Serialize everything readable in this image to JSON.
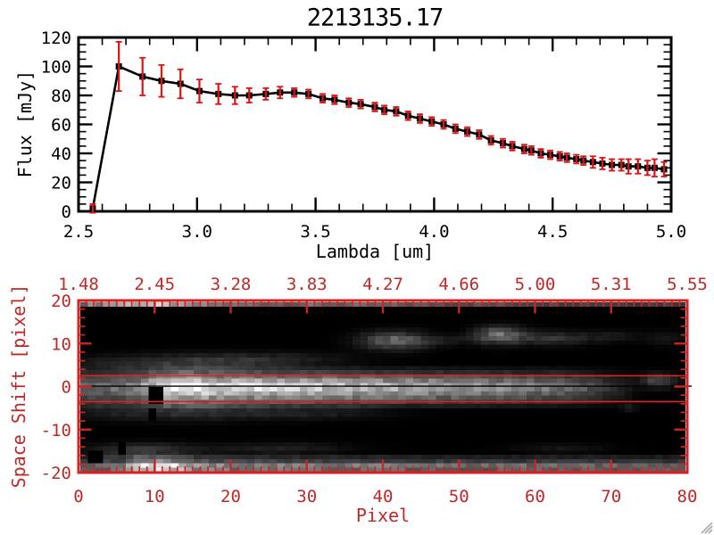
{
  "title": "2213135.17",
  "colors": {
    "background": "#ffffff",
    "axis_black": "#000000",
    "axis_red_text": "#c02828",
    "axis_red_line": "#d42222",
    "error_bar_red": "#e01212",
    "marker_black": "#000000",
    "image_background": "#000000",
    "grip_gray": "#a8a8a8"
  },
  "icons": {
    "resize_grip": "diagonal-resize-lines"
  },
  "chart_data": [
    {
      "type": "line",
      "title": "2213135.17",
      "xlabel": "Lambda [um]",
      "ylabel": "Flux [mJy]",
      "xlim": [
        2.5,
        5.0
      ],
      "ylim": [
        0,
        120
      ],
      "x_minor_step": 0.1,
      "y_minor_step": 5,
      "marker": "filled-square",
      "error_bars": true,
      "xticks": [
        {
          "v": 2.5,
          "label": "2.5"
        },
        {
          "v": 3.0,
          "label": "3.0"
        },
        {
          "v": 3.5,
          "label": "3.5"
        },
        {
          "v": 4.0,
          "label": "4.0"
        },
        {
          "v": 4.5,
          "label": "4.5"
        },
        {
          "v": 5.0,
          "label": "5.0"
        }
      ],
      "yticks": [
        {
          "v": 0,
          "label": "0"
        },
        {
          "v": 20,
          "label": "20"
        },
        {
          "v": 40,
          "label": "40"
        },
        {
          "v": 60,
          "label": "60"
        },
        {
          "v": 80,
          "label": "80"
        },
        {
          "v": 100,
          "label": "100"
        },
        {
          "v": 120,
          "label": "120"
        }
      ],
      "points": [
        [
          2.56,
          2,
          3
        ],
        [
          2.67,
          100,
          17
        ],
        [
          2.77,
          93,
          13
        ],
        [
          2.85,
          90,
          11
        ],
        [
          2.93,
          88,
          10
        ],
        [
          3.01,
          83,
          8
        ],
        [
          3.09,
          81,
          7
        ],
        [
          3.16,
          80,
          6
        ],
        [
          3.22,
          80,
          5
        ],
        [
          3.29,
          81,
          4
        ],
        [
          3.35,
          82,
          4
        ],
        [
          3.41,
          82,
          3
        ],
        [
          3.47,
          81,
          3
        ],
        [
          3.53,
          78,
          3
        ],
        [
          3.58,
          77,
          3
        ],
        [
          3.64,
          75,
          3
        ],
        [
          3.69,
          74,
          3
        ],
        [
          3.75,
          72,
          3
        ],
        [
          3.79,
          70,
          3
        ],
        [
          3.84,
          69,
          3
        ],
        [
          3.89,
          66,
          3
        ],
        [
          3.94,
          64,
          3
        ],
        [
          3.99,
          62,
          3
        ],
        [
          4.04,
          60,
          3
        ],
        [
          4.09,
          57,
          3
        ],
        [
          4.14,
          55,
          3
        ],
        [
          4.19,
          53,
          3
        ],
        [
          4.24,
          49,
          3
        ],
        [
          4.29,
          47,
          3
        ],
        [
          4.33,
          45,
          3
        ],
        [
          4.38,
          43,
          3
        ],
        [
          4.41,
          42,
          3
        ],
        [
          4.45,
          40,
          3
        ],
        [
          4.49,
          39,
          3
        ],
        [
          4.53,
          38,
          3
        ],
        [
          4.56,
          37,
          3
        ],
        [
          4.6,
          36,
          3
        ],
        [
          4.63,
          35,
          3
        ],
        [
          4.67,
          34,
          4
        ],
        [
          4.71,
          33,
          4
        ],
        [
          4.75,
          32,
          4
        ],
        [
          4.79,
          32,
          4
        ],
        [
          4.82,
          31,
          5
        ],
        [
          4.86,
          31,
          5
        ],
        [
          4.9,
          30,
          5
        ],
        [
          4.93,
          30,
          6
        ],
        [
          4.97,
          29,
          5
        ]
      ]
    },
    {
      "type": "heatmap",
      "xlabel": "Pixel",
      "ylabel": "Space Shift [pixel]",
      "xlim": [
        0,
        80
      ],
      "ylim": [
        -20,
        20
      ],
      "x_minor_step": 1,
      "y_minor_step": 2,
      "xticks": [
        {
          "v": 0,
          "label": "0"
        },
        {
          "v": 10,
          "label": "10"
        },
        {
          "v": 20,
          "label": "20"
        },
        {
          "v": 30,
          "label": "30"
        },
        {
          "v": 40,
          "label": "40"
        },
        {
          "v": 50,
          "label": "50"
        },
        {
          "v": 60,
          "label": "60"
        },
        {
          "v": 70,
          "label": "70"
        },
        {
          "v": 80,
          "label": "80"
        }
      ],
      "yticks": [
        {
          "v": 20,
          "label": "20"
        },
        {
          "v": 10,
          "label": "10"
        },
        {
          "v": 0,
          "label": "0"
        },
        {
          "v": -10,
          "label": "-10"
        },
        {
          "v": -20,
          "label": "-20"
        }
      ],
      "top_axis_ticks": [
        {
          "v": 0,
          "label": "1.48"
        },
        {
          "v": 10,
          "label": "2.45"
        },
        {
          "v": 20,
          "label": "3.28"
        },
        {
          "v": 30,
          "label": "3.83"
        },
        {
          "v": 40,
          "label": "4.27"
        },
        {
          "v": 50,
          "label": "4.66"
        },
        {
          "v": 60,
          "label": "5.00"
        },
        {
          "v": 70,
          "label": "5.31"
        },
        {
          "v": 80,
          "label": "5.55"
        }
      ],
      "trace_line_shift": 0.1,
      "aperture_lines_shift": [
        2.5,
        -3.5
      ],
      "image_features": {
        "bands": [
          {
            "name": "top-edge-band",
            "rows": [
              {
                "s": 19.5,
                "f": 1.0
              }
            ],
            "xstops": [
              [
                0,
                0.42
              ],
              [
                4,
                0.62
              ],
              [
                7,
                0.72
              ],
              [
                11,
                0.72
              ],
              [
                14,
                0.5
              ],
              [
                20,
                0.42
              ],
              [
                40,
                0.36
              ],
              [
                55,
                0.3
              ],
              [
                70,
                0.26
              ],
              [
                80,
                0.25
              ]
            ]
          },
          {
            "name": "central-spectrum-band",
            "rows": [
              {
                "s": 4.5,
                "f": 0.12
              },
              {
                "s": 3.5,
                "f": 0.3
              },
              {
                "s": 2.5,
                "f": 0.52
              },
              {
                "s": 1.5,
                "f": 0.75
              },
              {
                "s": 0.5,
                "f": 0.97
              },
              {
                "s": -0.5,
                "f": 0.97
              },
              {
                "s": -1.5,
                "f": 0.8
              },
              {
                "s": -2.5,
                "f": 0.6
              },
              {
                "s": -3.5,
                "f": 0.38
              },
              {
                "s": -4.5,
                "f": 0.18
              }
            ],
            "xstops": [
              [
                0,
                0.38
              ],
              [
                4,
                0.44
              ],
              [
                7,
                0.52
              ],
              [
                10,
                0.8
              ],
              [
                12,
                1.0
              ],
              [
                15,
                1.0
              ],
              [
                18,
                0.88
              ],
              [
                25,
                0.82
              ],
              [
                35,
                0.75
              ],
              [
                45,
                0.65
              ],
              [
                55,
                0.55
              ],
              [
                62,
                0.45
              ],
              [
                67,
                0.33
              ],
              [
                70,
                0.2
              ],
              [
                73,
                0.06
              ],
              [
                75,
                0
              ],
              [
                80,
                0
              ]
            ]
          },
          {
            "name": "bottom-edge-band",
            "rows": [
              {
                "s": -16.5,
                "f": 0.28
              },
              {
                "s": -17.5,
                "f": 0.5
              },
              {
                "s": -18.5,
                "f": 0.95
              },
              {
                "s": -19.5,
                "f": 0.85
              }
            ],
            "xstops": [
              [
                0,
                0.38
              ],
              [
                6,
                0.5
              ],
              [
                8,
                0.95
              ],
              [
                12,
                0.95
              ],
              [
                15,
                0.6
              ],
              [
                20,
                0.52
              ],
              [
                30,
                0.5
              ],
              [
                45,
                0.45
              ],
              [
                60,
                0.42
              ],
              [
                80,
                0.4
              ]
            ]
          }
        ],
        "blobs": [
          {
            "name": "halo-upper-left",
            "x": 12,
            "s": 5.5,
            "rx": 16,
            "ry": 2.6,
            "i": 0.2
          },
          {
            "name": "halo-upper-left-2",
            "x": 24,
            "s": 6.5,
            "rx": 14,
            "ry": 2.2,
            "i": 0.12
          },
          {
            "name": "halo-lower-left",
            "x": 12,
            "s": -5.5,
            "rx": 17,
            "ry": 2.8,
            "i": 0.2
          },
          {
            "name": "halo-lower-mid",
            "x": 31,
            "s": -6,
            "rx": 12,
            "ry": 2,
            "i": 0.1
          },
          {
            "name": "upper-blob-a",
            "x": 41,
            "s": 11,
            "rx": 5.5,
            "ry": 2.6,
            "i": 0.38
          },
          {
            "name": "upper-blob-bridge",
            "x": 48,
            "s": 11,
            "rx": 5,
            "ry": 1.6,
            "i": 0.08
          },
          {
            "name": "upper-blob-b",
            "x": 55,
            "s": 12.3,
            "rx": 4,
            "ry": 2.5,
            "i": 0.42
          },
          {
            "name": "upper-blob-tail",
            "x": 62,
            "s": 11.5,
            "rx": 6,
            "ry": 2,
            "i": 0.2
          },
          {
            "name": "upper-blob-tail-2",
            "x": 70,
            "s": 12,
            "rx": 5,
            "ry": 1.8,
            "i": 0.09
          },
          {
            "name": "right-edge-upper",
            "x": 77,
            "s": 11.5,
            "rx": 3,
            "ry": 2,
            "i": 0.1
          },
          {
            "name": "right-mid-blob",
            "x": 76,
            "s": 1.5,
            "rx": 3,
            "ry": 2.2,
            "i": 0.28
          },
          {
            "name": "bottom-left-patch",
            "x": 8,
            "s": -15,
            "rx": 9,
            "ry": 2.2,
            "i": 0.22
          },
          {
            "name": "bottom-mid-patch",
            "x": 26,
            "s": -14.5,
            "rx": 11,
            "ry": 1.8,
            "i": 0.12
          },
          {
            "name": "bottom-right-faint",
            "x": 63,
            "s": -14.5,
            "rx": 8,
            "ry": 1.5,
            "i": 0.08
          },
          {
            "name": "lower-right-dot",
            "x": 72,
            "s": -5,
            "rx": 1.5,
            "ry": 1,
            "i": 0.12
          }
        ],
        "masks": [
          [
            9,
            11.3,
            -0.4,
            -3.2
          ],
          [
            8.8,
            10,
            -5,
            -7
          ],
          [
            4.6,
            6,
            -13.3,
            -15.2
          ],
          [
            1,
            2.5,
            -15.4,
            -17
          ]
        ]
      }
    }
  ]
}
